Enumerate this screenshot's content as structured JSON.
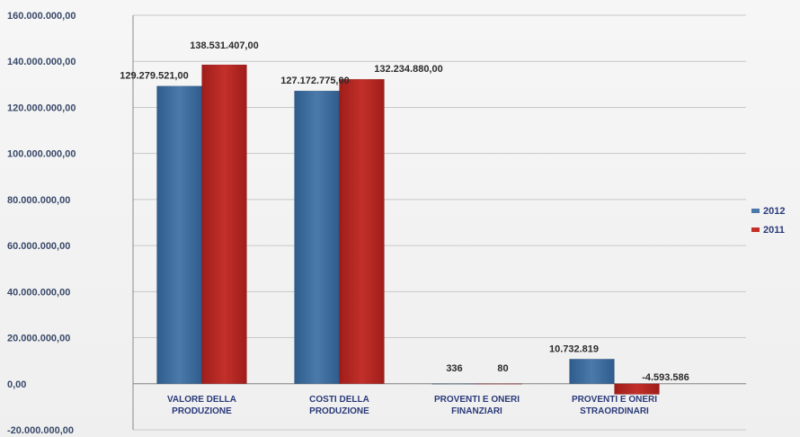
{
  "chart_data": {
    "type": "bar",
    "title": "",
    "xlabel": "",
    "ylabel": "",
    "ylim": [
      -20000000,
      160000000
    ],
    "yticks": [
      {
        "value": 160000000,
        "label": "160.000.000,00"
      },
      {
        "value": 140000000,
        "label": "140.000.000,00"
      },
      {
        "value": 120000000,
        "label": "120.000.000,00"
      },
      {
        "value": 100000000,
        "label": "100.000.000,00"
      },
      {
        "value": 80000000,
        "label": "80.000.000,00"
      },
      {
        "value": 60000000,
        "label": "60.000.000,00"
      },
      {
        "value": 40000000,
        "label": "40.000.000,00"
      },
      {
        "value": 20000000,
        "label": "20.000.000,00"
      },
      {
        "value": 0,
        "label": "0,00"
      },
      {
        "value": -20000000,
        "label": "-20.000.000,00"
      }
    ],
    "categories": [
      [
        "VALORE DELLA",
        "PRODUZIONE"
      ],
      [
        "COSTI DELLA",
        "PRODUZIONE"
      ],
      [
        "PROVENTI E ONERI",
        "FINANZIARI"
      ],
      [
        "PROVENTI E ONERI",
        "STRAORDINARI"
      ]
    ],
    "series": [
      {
        "name": "2012",
        "color": "#3f6d9e",
        "values": [
          129279521,
          127172775,
          336,
          10732819
        ],
        "labels": [
          "129.279.521,00",
          "127.172.775,00",
          "336",
          "10.732.819"
        ]
      },
      {
        "name": "2011",
        "color": "#b3231f",
        "values": [
          138531407,
          132234880,
          80,
          -4593586
        ],
        "labels": [
          "138.531.407,00",
          "132.234.880,00",
          "80",
          "-4.593.586"
        ]
      }
    ],
    "grid": true,
    "legend": "right"
  }
}
